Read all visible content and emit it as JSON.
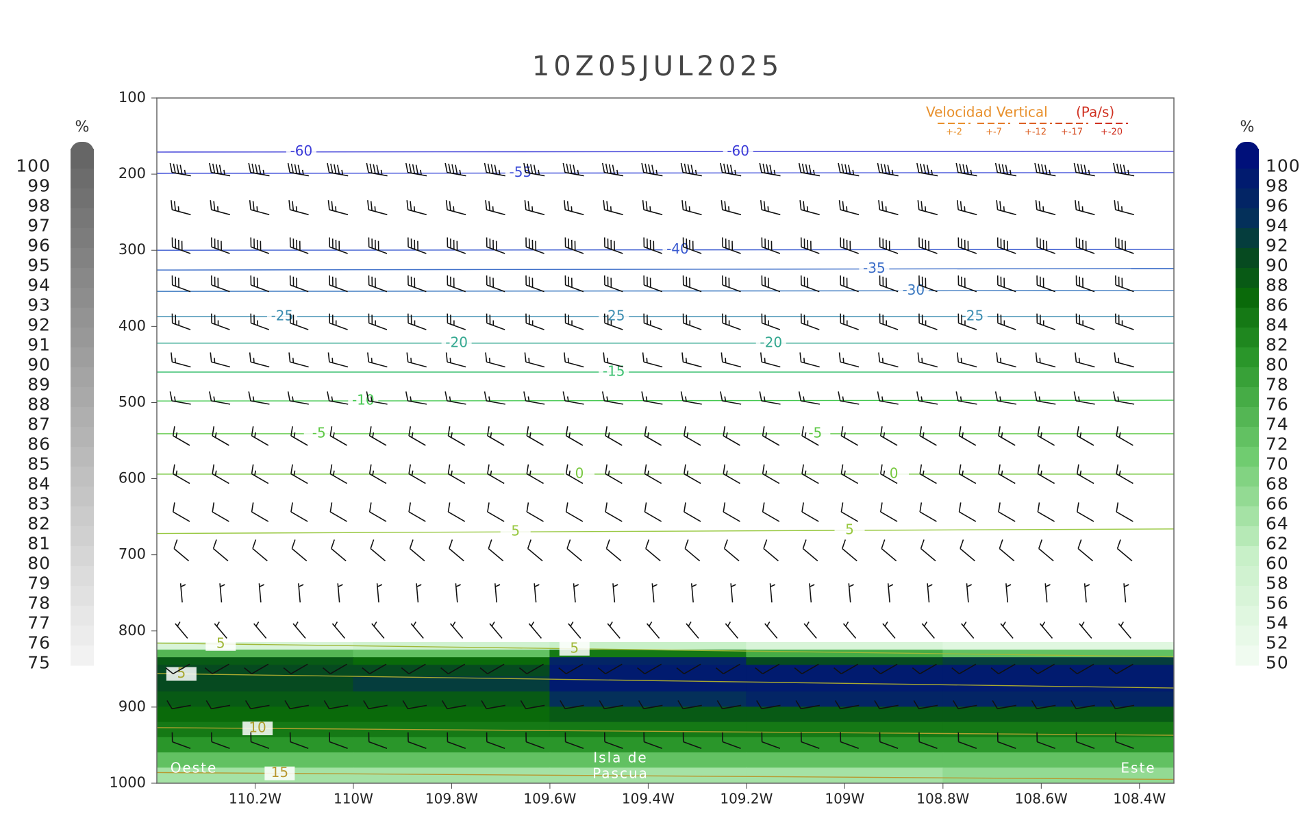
{
  "chart_data": {
    "type": "cross-section",
    "title": "10Z05JUL2025",
    "xlim": [
      -110.4,
      -108.33
    ],
    "xticks": [
      {
        "value": -110.2,
        "label": "110.2W"
      },
      {
        "value": -110.0,
        "label": "110W"
      },
      {
        "value": -109.8,
        "label": "109.8W"
      },
      {
        "value": -109.6,
        "label": "109.6W"
      },
      {
        "value": -109.4,
        "label": "109.4W"
      },
      {
        "value": -109.2,
        "label": "109.2W"
      },
      {
        "value": -109.0,
        "label": "109W"
      },
      {
        "value": -108.8,
        "label": "108.8W"
      },
      {
        "value": -108.6,
        "label": "108.6W"
      },
      {
        "value": -108.4,
        "label": "108.4W"
      }
    ],
    "ylim": [
      100,
      1000
    ],
    "yticks": [
      100,
      200,
      300,
      400,
      500,
      600,
      700,
      800,
      900,
      1000
    ],
    "annotations": {
      "west": "Oeste",
      "center_1": "Isla de",
      "center_2": "Pascua",
      "east": "Este"
    },
    "legend": {
      "title": "Velocidad Vertical",
      "units": "(Pa/s)",
      "items": [
        {
          "label": "+-2",
          "color": "#e8902c"
        },
        {
          "label": "+-7",
          "color": "#e47a28"
        },
        {
          "label": "+-12",
          "color": "#dc6024"
        },
        {
          "label": "+-17",
          "color": "#d44a20"
        },
        {
          "label": "+-20",
          "color": "#d03020"
        }
      ]
    },
    "gray_colorbar": {
      "unit": "%",
      "levels": [
        100,
        99,
        98,
        97,
        96,
        95,
        94,
        93,
        92,
        91,
        90,
        89,
        88,
        87,
        86,
        85,
        84,
        83,
        82,
        81,
        80,
        79,
        78,
        77,
        76,
        75
      ]
    },
    "green_colorbar": {
      "unit": "%",
      "levels": [
        100,
        98,
        96,
        94,
        92,
        90,
        88,
        86,
        84,
        82,
        80,
        78,
        76,
        74,
        72,
        70,
        68,
        66,
        64,
        62,
        60,
        58,
        56,
        54,
        52,
        50
      ]
    },
    "rh_field": {
      "x_edges": [
        -110.4,
        -110.0,
        -109.6,
        -109.2,
        -108.8,
        -108.33
      ],
      "p_edges": [
        815,
        825,
        835,
        845,
        860,
        880,
        900,
        920,
        940,
        960,
        980,
        1000
      ],
      "values": [
        [
          56,
          58,
          60,
          56,
          54
        ],
        [
          74,
          72,
          84,
          76,
          72
        ],
        [
          88,
          86,
          96,
          90,
          92
        ],
        [
          90,
          90,
          98,
          98,
          98
        ],
        [
          90,
          92,
          98,
          98,
          98
        ],
        [
          88,
          88,
          94,
          96,
          96
        ],
        [
          86,
          86,
          88,
          88,
          88
        ],
        [
          84,
          84,
          84,
          84,
          84
        ],
        [
          80,
          80,
          80,
          80,
          80
        ],
        [
          72,
          72,
          72,
          72,
          72
        ],
        [
          64,
          64,
          64,
          64,
          66
        ]
      ]
    },
    "contours": [
      {
        "level": -60,
        "color": "#3c3cd8",
        "x": [
          -110.4,
          -108.33
        ],
        "p": [
          171,
          170
        ],
        "label_x": [
          -110.106,
          -109.217
        ]
      },
      {
        "level": -55,
        "color": "#3c4cd8",
        "x": [
          -110.4,
          -108.33
        ],
        "p": [
          199,
          198
        ],
        "label_x": [
          -109.66
        ]
      },
      {
        "level": -40,
        "color": "#3a5ad0",
        "x": [
          -110.4,
          -108.33
        ],
        "p": [
          300,
          299
        ],
        "label_x": [
          -109.34
        ]
      },
      {
        "level": -35,
        "color": "#3a6cc8",
        "x": [
          -110.4,
          -108.33
        ],
        "p": [
          326,
          324
        ],
        "label_x": [
          -108.94
        ]
      },
      {
        "level": -30,
        "color": "#3a78c0",
        "x": [
          -110.4,
          -108.33
        ],
        "p": [
          354,
          353
        ],
        "label_x": [
          -108.86
        ]
      },
      {
        "level": -25,
        "color": "#3a8cb0",
        "x": [
          -110.4,
          -108.33
        ],
        "p": [
          387,
          387
        ],
        "label_x": [
          -110.145,
          -109.47,
          -108.74
        ]
      },
      {
        "level": -20,
        "color": "#34a890",
        "x": [
          -110.4,
          -108.33
        ],
        "p": [
          422,
          422
        ],
        "label_x": [
          -109.79,
          -109.15
        ]
      },
      {
        "level": -15,
        "color": "#3cc070",
        "x": [
          -110.4,
          -108.33
        ],
        "p": [
          460,
          460
        ],
        "label_x": [
          -109.47
        ]
      },
      {
        "level": -10,
        "color": "#44c850",
        "x": [
          -110.4,
          -108.33
        ],
        "p": [
          498,
          497
        ],
        "label_x": [
          -109.98
        ]
      },
      {
        "level": -5,
        "color": "#5cc844",
        "x": [
          -110.4,
          -108.33
        ],
        "p": [
          541,
          541
        ],
        "label_x": [
          -110.07,
          -109.06
        ]
      },
      {
        "level": 0,
        "color": "#78c840",
        "x": [
          -110.4,
          -108.33
        ],
        "p": [
          594,
          594
        ],
        "label_x": [
          -109.54,
          -108.9
        ]
      },
      {
        "level": 5,
        "color": "#98c840",
        "x": [
          -110.4,
          -108.33
        ],
        "p": [
          672,
          666
        ],
        "label_x": [
          -109.67,
          -108.99
        ]
      },
      {
        "level": 5,
        "color": "#a0b838",
        "x": [
          -110.4,
          -108.33
        ],
        "p": [
          816,
          834
        ],
        "label_x": [
          -110.27,
          -109.55
        ]
      },
      {
        "level": 5,
        "color": "#a8a830",
        "x": [
          -110.4,
          -108.33
        ],
        "p": [
          856,
          875
        ],
        "label_x": [
          -110.35
        ]
      },
      {
        "level": 10,
        "color": "#b0a030",
        "x": [
          -110.4,
          -108.33
        ],
        "p": [
          927,
          937
        ],
        "label_x": [
          -110.195
        ]
      },
      {
        "level": 15,
        "color": "#b89830",
        "x": [
          -110.4,
          -108.33
        ],
        "p": [
          986,
          995
        ],
        "label_x": [
          -110.15
        ]
      }
    ],
    "wind": {
      "x": [
        -110.35,
        -110.27,
        -110.19,
        -110.11,
        -110.03,
        -109.95,
        -109.87,
        -109.79,
        -109.71,
        -109.63,
        -109.55,
        -109.47,
        -109.39,
        -109.31,
        -109.23,
        -109.15,
        -109.07,
        -108.99,
        -108.91,
        -108.83,
        -108.75,
        -108.67,
        -108.59,
        -108.51,
        -108.43
      ],
      "p": [
        200,
        250,
        300,
        350,
        400,
        450,
        500,
        550,
        600,
        650,
        700,
        750,
        800,
        850,
        900,
        950
      ],
      "direction": [
        280,
        285,
        290,
        290,
        290,
        285,
        280,
        300,
        300,
        300,
        310,
        355,
        320,
        240,
        260,
        290
      ],
      "speed": [
        45,
        25,
        40,
        30,
        25,
        15,
        15,
        15,
        15,
        10,
        10,
        5,
        5,
        10,
        10,
        10
      ]
    }
  }
}
